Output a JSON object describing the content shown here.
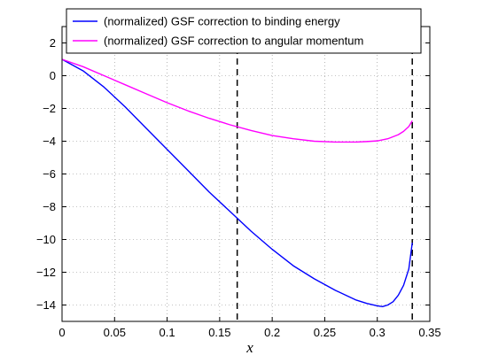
{
  "chart_data": {
    "type": "line",
    "title": "",
    "xlabel": "x",
    "ylabel": "",
    "xlim": [
      0,
      0.35
    ],
    "ylim": [
      -15,
      3
    ],
    "xticks": [
      0,
      0.05,
      0.1,
      0.15,
      0.2,
      0.25,
      0.3,
      0.35
    ],
    "xtick_labels": [
      "0",
      "0.05",
      "0.1",
      "0.15",
      "0.2",
      "0.25",
      "0.3",
      "0.35"
    ],
    "yticks": [
      -14,
      -12,
      -10,
      -8,
      -6,
      -4,
      -2,
      0,
      2
    ],
    "ytick_labels": [
      "−14",
      "−12",
      "−10",
      "−8",
      "−6",
      "−4",
      "−2",
      "0",
      "2"
    ],
    "grid": true,
    "legend_position": "top-center",
    "vertical_lines": [
      0.1667,
      0.3333
    ],
    "series": [
      {
        "name": "(normalized) GSF correction to binding energy",
        "color": "#0000ff",
        "x": [
          0,
          0.02,
          0.04,
          0.06,
          0.08,
          0.1,
          0.12,
          0.14,
          0.16,
          0.18,
          0.2,
          0.22,
          0.24,
          0.26,
          0.28,
          0.29,
          0.3,
          0.305,
          0.31,
          0.315,
          0.32,
          0.325,
          0.33,
          0.3333
        ],
        "y": [
          1.0,
          0.3,
          -0.7,
          -1.9,
          -3.2,
          -4.5,
          -5.8,
          -7.1,
          -8.3,
          -9.5,
          -10.6,
          -11.6,
          -12.4,
          -13.1,
          -13.7,
          -13.9,
          -14.05,
          -14.1,
          -14.0,
          -13.8,
          -13.4,
          -12.8,
          -11.8,
          -10.2
        ]
      },
      {
        "name": "(normalized) GSF correction to angular momentum",
        "color": "#ff00ff",
        "x": [
          0,
          0.02,
          0.04,
          0.06,
          0.08,
          0.1,
          0.12,
          0.14,
          0.16,
          0.18,
          0.2,
          0.22,
          0.24,
          0.26,
          0.28,
          0.29,
          0.3,
          0.31,
          0.32,
          0.325,
          0.33,
          0.3333
        ],
        "y": [
          1.0,
          0.55,
          0.0,
          -0.55,
          -1.1,
          -1.65,
          -2.15,
          -2.6,
          -3.0,
          -3.35,
          -3.65,
          -3.85,
          -4.0,
          -4.05,
          -4.05,
          -4.02,
          -3.98,
          -3.85,
          -3.6,
          -3.4,
          -3.1,
          -2.75
        ]
      }
    ]
  }
}
